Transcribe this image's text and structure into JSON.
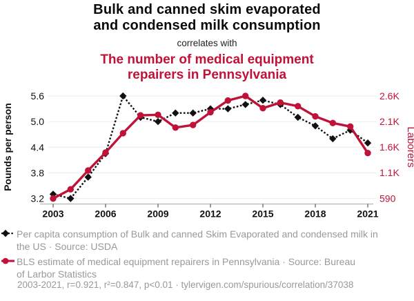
{
  "figure": {
    "title_line1": "Bulk and canned skim evaporated",
    "title_line2": "and condensed milk consumption",
    "connector": "correlates with",
    "subtitle_line1": "The number of medical equipment",
    "subtitle_line2": "repairers in Pennsylvania"
  },
  "colors": {
    "accent_red": "#bf1238",
    "series_black": "#111111",
    "text_gray": "#999999",
    "gridline": "#efefef",
    "axis_line": "#b3b3b3",
    "tick_mark": "#555555"
  },
  "chart_data": {
    "type": "line",
    "x": [
      2003,
      2004,
      2005,
      2006,
      2007,
      2008,
      2009,
      2010,
      2011,
      2012,
      2013,
      2014,
      2015,
      2016,
      2017,
      2018,
      2019,
      2020,
      2021
    ],
    "series": [
      {
        "name": "Per capita consumption of Bulk and canned Skim Evaporated and condensed milk in the US",
        "source": "USDA",
        "axis": "left",
        "marker": "diamond",
        "line_style": "dashed",
        "values": [
          3.3,
          3.2,
          3.7,
          4.25,
          5.6,
          5.1,
          5.0,
          5.2,
          5.2,
          5.3,
          5.3,
          5.4,
          5.5,
          5.4,
          5.1,
          4.9,
          4.6,
          4.8,
          4.5
        ]
      },
      {
        "name": "BLS estimate of medical equipment repairers in Pennsylvania",
        "source": "Bureau of Larbor Statistics",
        "axis": "right",
        "marker": "circle",
        "line_style": "solid",
        "values": [
          590,
          770,
          1140,
          1490,
          1870,
          2220,
          2230,
          1980,
          2030,
          2280,
          2510,
          2600,
          2360,
          2470,
          2400,
          2200,
          2070,
          2000,
          1480
        ]
      }
    ],
    "left_axis": {
      "label": "Pounds per person",
      "range": [
        3.2,
        5.6
      ],
      "ticks": [
        3.2,
        3.8,
        4.4,
        5.0,
        5.6
      ],
      "tick_labels": [
        "3.2",
        "3.8",
        "4.4",
        "5.0",
        "5.6"
      ]
    },
    "right_axis": {
      "label": "Laborers",
      "range": [
        590,
        2600
      ],
      "ticks": [
        590,
        1100,
        1600,
        2100,
        2600
      ],
      "tick_labels": [
        "590",
        "1.1K",
        "1.6K",
        "2.1K",
        "2.6K"
      ]
    },
    "x_axis": {
      "tick_years": [
        2003,
        2006,
        2009,
        2012,
        2015,
        2018,
        2021
      ],
      "tick_labels": [
        "2003",
        "2006",
        "2009",
        "2012",
        "2015",
        "2018",
        "2021"
      ]
    },
    "grid": "horizontal-only",
    "legend_position": "below"
  },
  "legend": [
    {
      "marker": "black-diamond-dashed",
      "lines": [
        "Per capita consumption of Bulk and canned Skim Evaporated and condensed milk in",
        "the US · Source: USDA"
      ]
    },
    {
      "marker": "red-circle-solid",
      "lines": [
        "BLS estimate of medical equipment repairers in Pennsylvania · Source: Bureau",
        "of Larbor Statistics"
      ]
    }
  ],
  "footer": {
    "stats": "2003-2021, r=0.921, r²=0.847, p<0.01 · tylervigen.com/spurious/correlation/37038"
  }
}
